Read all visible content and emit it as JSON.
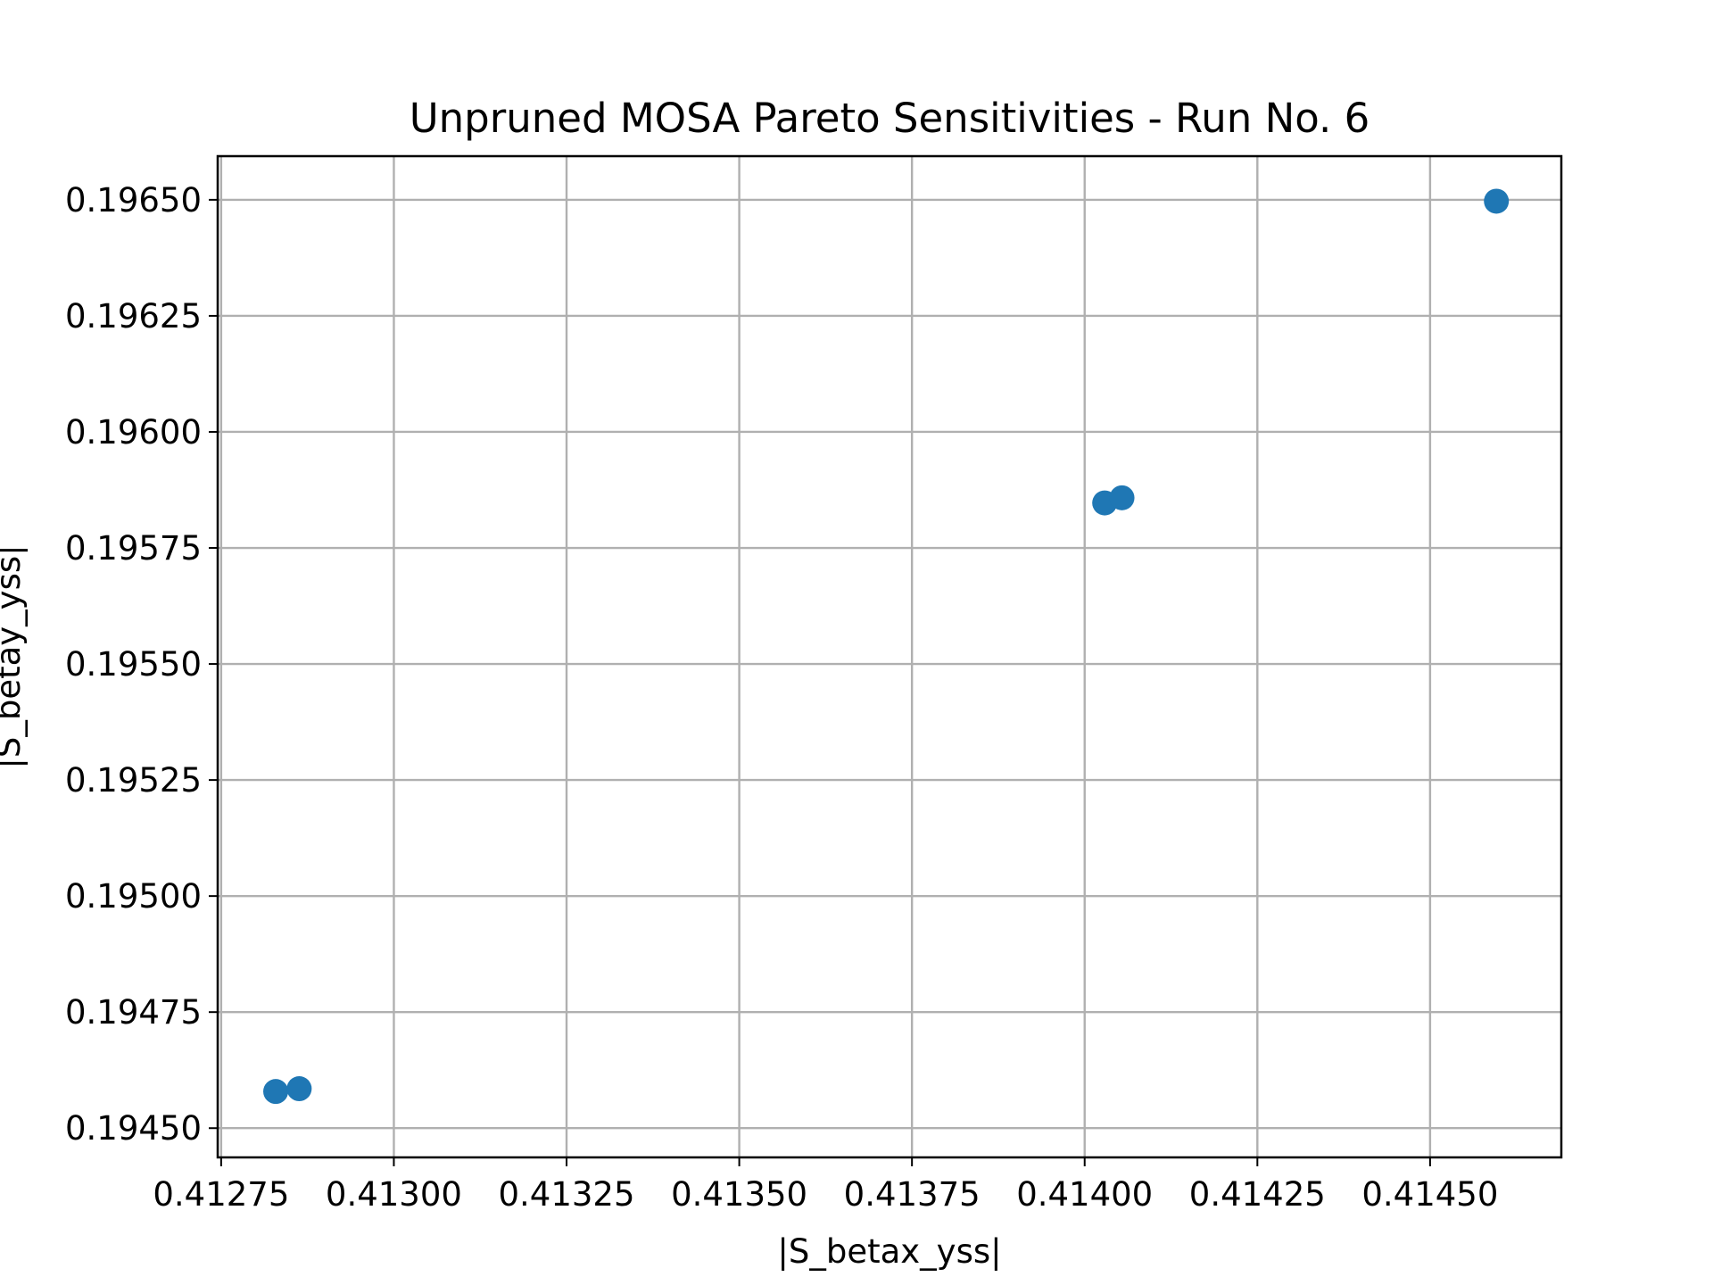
{
  "chart_data": {
    "type": "scatter",
    "title": "Unpruned MOSA Pareto Sensitivities - Run No. 6",
    "xlabel": "|S_betax_yss|",
    "ylabel": "|S_betay_yss|",
    "xlim": [
      0.412745,
      0.41469
    ],
    "ylim": [
      0.194437,
      0.196594
    ],
    "grid": true,
    "color": "#1f77b4",
    "x_ticks": [
      {
        "value": 0.41275,
        "label": "0.41275"
      },
      {
        "value": 0.413,
        "label": "0.41300"
      },
      {
        "value": 0.41325,
        "label": "0.41325"
      },
      {
        "value": 0.4135,
        "label": "0.41350"
      },
      {
        "value": 0.41375,
        "label": "0.41375"
      },
      {
        "value": 0.414,
        "label": "0.41400"
      },
      {
        "value": 0.41425,
        "label": "0.41425"
      },
      {
        "value": 0.4145,
        "label": "0.41450"
      }
    ],
    "y_ticks": [
      {
        "value": 0.1945,
        "label": "0.19450"
      },
      {
        "value": 0.19475,
        "label": "0.19475"
      },
      {
        "value": 0.195,
        "label": "0.19500"
      },
      {
        "value": 0.19525,
        "label": "0.19525"
      },
      {
        "value": 0.1955,
        "label": "0.19550"
      },
      {
        "value": 0.19575,
        "label": "0.19575"
      },
      {
        "value": 0.196,
        "label": "0.19600"
      },
      {
        "value": 0.19625,
        "label": "0.19625"
      },
      {
        "value": 0.1965,
        "label": "0.19650"
      }
    ],
    "points": [
      {
        "x": 0.412829,
        "y": 0.194579
      },
      {
        "x": 0.412863,
        "y": 0.194585
      },
      {
        "x": 0.414029,
        "y": 0.195847
      },
      {
        "x": 0.414054,
        "y": 0.195858
      },
      {
        "x": 0.414596,
        "y": 0.196497
      }
    ]
  }
}
